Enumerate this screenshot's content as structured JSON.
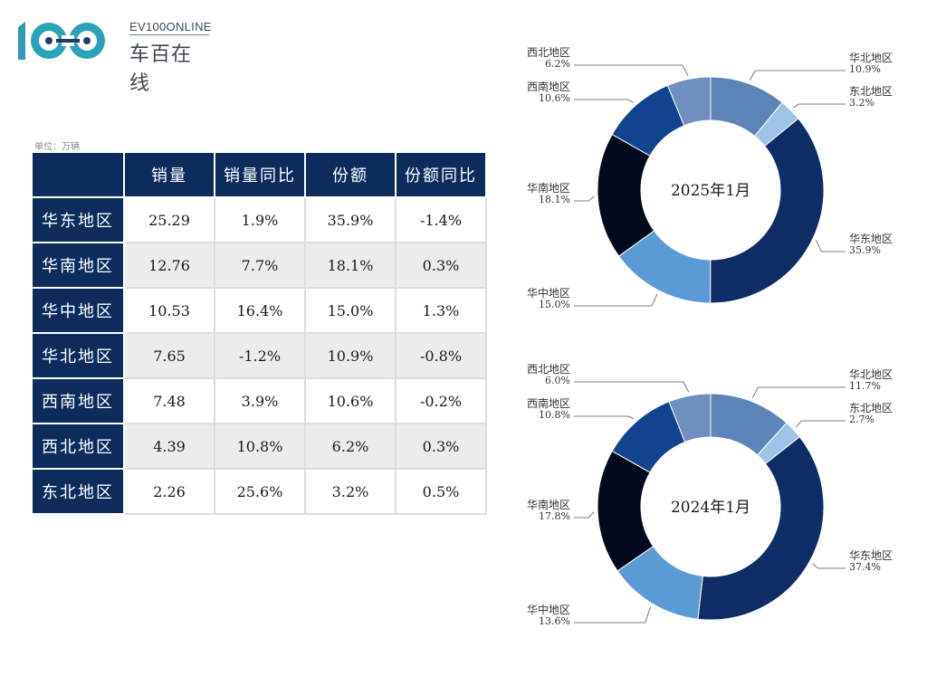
{
  "brand": {
    "en": "EV100ONLINE",
    "cn": "车百在线"
  },
  "table": {
    "unit": "单位：万辆",
    "headers": [
      "销量",
      "销量同比",
      "份额",
      "份额同比"
    ],
    "rows": [
      {
        "region": "华东地区",
        "cells": [
          "25.29",
          "1.9%",
          "35.9%",
          "-1.4%"
        ]
      },
      {
        "region": "华南地区",
        "cells": [
          "12.76",
          "7.7%",
          "18.1%",
          "0.3%"
        ]
      },
      {
        "region": "华中地区",
        "cells": [
          "10.53",
          "16.4%",
          "15.0%",
          "1.3%"
        ]
      },
      {
        "region": "华北地区",
        "cells": [
          "7.65",
          "-1.2%",
          "10.9%",
          "-0.8%"
        ]
      },
      {
        "region": "西南地区",
        "cells": [
          "7.48",
          "3.9%",
          "10.6%",
          "-0.2%"
        ]
      },
      {
        "region": "西北地区",
        "cells": [
          "4.39",
          "10.8%",
          "6.2%",
          "0.3%"
        ]
      },
      {
        "region": "东北地区",
        "cells": [
          "2.26",
          "25.6%",
          "3.2%",
          "0.5%"
        ]
      }
    ]
  },
  "chart_data": [
    {
      "type": "pie",
      "title": "2025年1月",
      "categories": [
        "华北地区",
        "东北地区",
        "华东地区",
        "华中地区",
        "华南地区",
        "西南地区",
        "西北地区"
      ],
      "values": [
        10.9,
        3.2,
        35.9,
        15.0,
        18.1,
        10.6,
        6.2
      ],
      "labels": [
        "10.9%",
        "3.2%",
        "35.9%",
        "15.0%",
        "18.1%",
        "10.6%",
        "6.2%"
      ],
      "colors": [
        "#5b84b8",
        "#9dc3e6",
        "#0e2d66",
        "#5b9bd5",
        "#02091b",
        "#11448f",
        "#6e8fbf"
      ]
    },
    {
      "type": "pie",
      "title": "2024年1月",
      "categories": [
        "华北地区",
        "东北地区",
        "华东地区",
        "华中地区",
        "华南地区",
        "西南地区",
        "西北地区"
      ],
      "values": [
        11.7,
        2.7,
        37.4,
        13.6,
        17.8,
        10.8,
        6.0
      ],
      "labels": [
        "11.7%",
        "2.7%",
        "37.4%",
        "13.6%",
        "17.8%",
        "10.8%",
        "6.0%"
      ],
      "colors": [
        "#5b84b8",
        "#9dc3e6",
        "#0e2d66",
        "#5b9bd5",
        "#02091b",
        "#11448f",
        "#6e8fbf"
      ]
    }
  ]
}
